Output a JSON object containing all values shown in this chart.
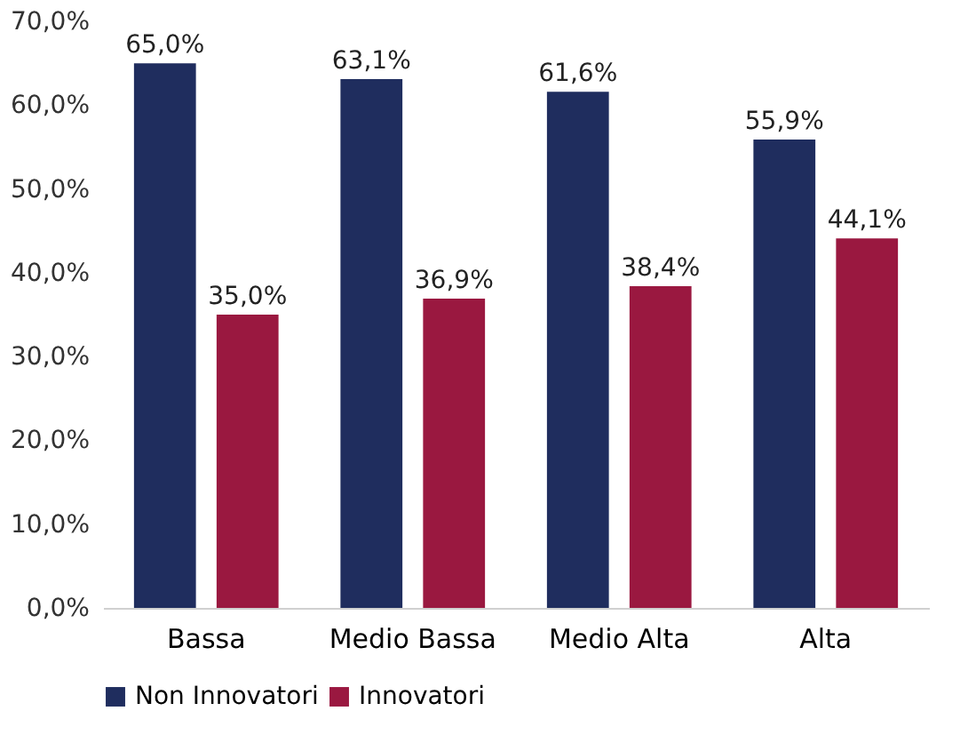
{
  "chart_data": {
    "type": "bar",
    "categories": [
      "Bassa",
      "Medio Bassa",
      "Medio Alta",
      "Alta"
    ],
    "series": [
      {
        "name": "Non Innovatori",
        "color": "#1f2d5e",
        "values": [
          65.0,
          63.1,
          61.6,
          55.9
        ],
        "value_labels": [
          "65,0%",
          "63,1%",
          "61,6%",
          "55,9%"
        ]
      },
      {
        "name": "Innovatori",
        "color": "#9a1840",
        "values": [
          35.0,
          36.9,
          38.4,
          44.1
        ],
        "value_labels": [
          "35,0%",
          "36,9%",
          "38,4%",
          "44,1%"
        ]
      }
    ],
    "ylim": [
      0,
      70
    ],
    "yticks": [
      {
        "value": 0,
        "label": "0,0%"
      },
      {
        "value": 10,
        "label": "10,0%"
      },
      {
        "value": 20,
        "label": "20,0%"
      },
      {
        "value": 30,
        "label": "30,0%"
      },
      {
        "value": 40,
        "label": "40,0%"
      },
      {
        "value": 50,
        "label": "50,0%"
      },
      {
        "value": 60,
        "label": "60,0%"
      },
      {
        "value": 70,
        "label": "70,0%"
      }
    ],
    "grid": false,
    "legend": "bottom"
  }
}
